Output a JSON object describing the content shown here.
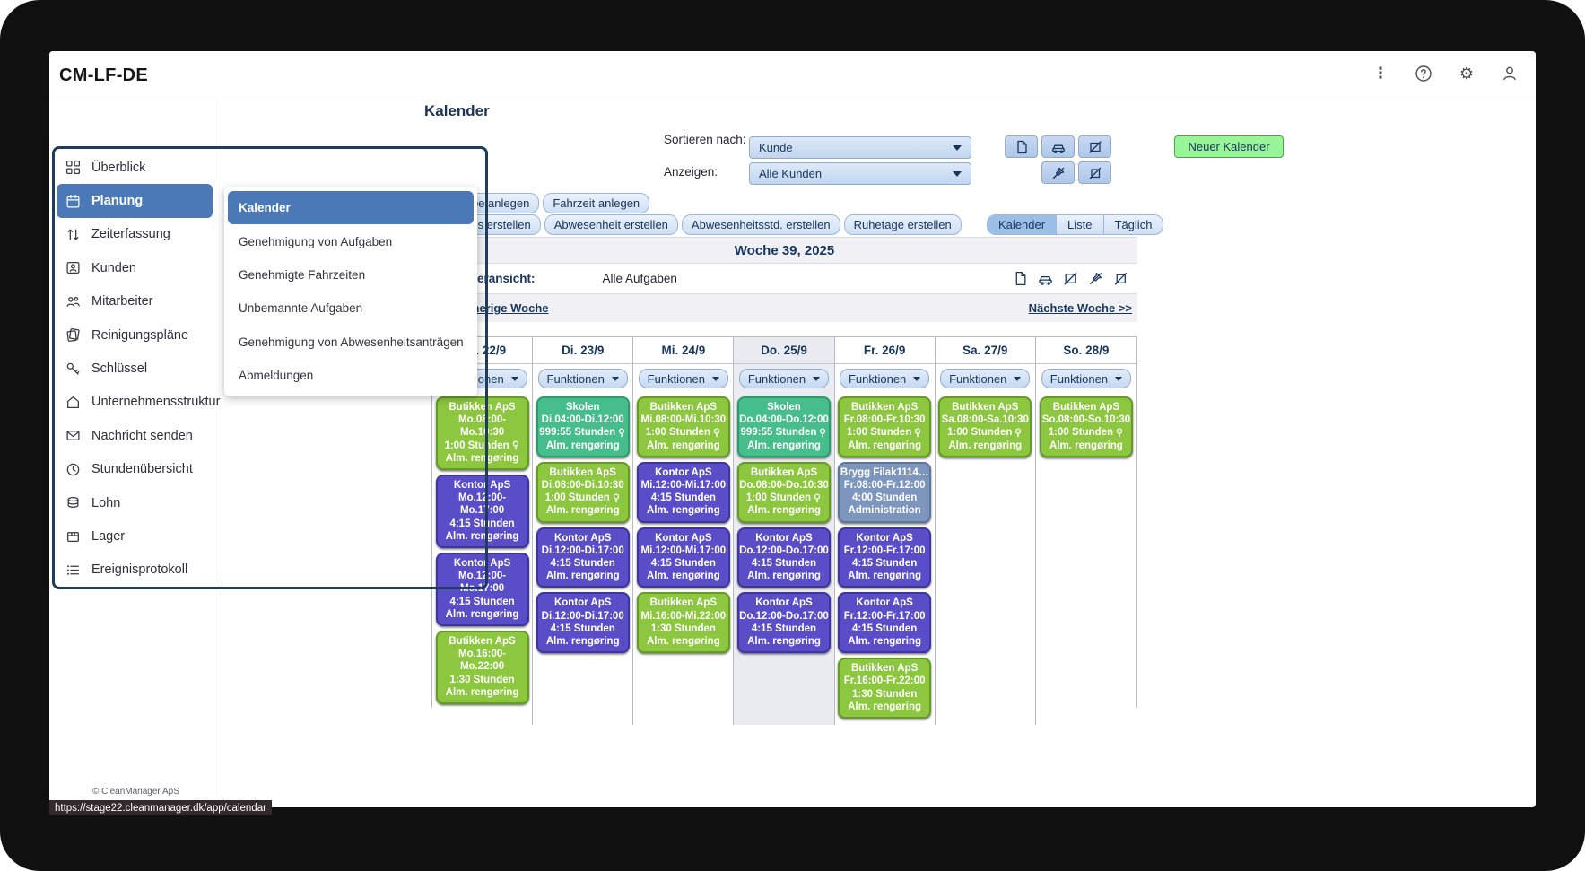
{
  "window": {
    "title": "CM-LF-DE"
  },
  "header": {
    "kebab_glyph": "⋮",
    "gear_glyph": "⚙",
    "help_glyph": "?"
  },
  "page": {
    "title": "Kalender"
  },
  "sidebar": {
    "collapse_glyph": "«",
    "items": [
      {
        "label": "Überblick",
        "icon": "grid"
      },
      {
        "label": "Planung",
        "icon": "calendar",
        "selected": true
      },
      {
        "label": "Zeiterfassung",
        "icon": "updown"
      },
      {
        "label": "Kunden",
        "icon": "idcard"
      },
      {
        "label": "Mitarbeiter",
        "icon": "people"
      },
      {
        "label": "Reinigungspläne",
        "icon": "sheets"
      },
      {
        "label": "Schlüssel",
        "icon": "key"
      },
      {
        "label": "Unternehmensstruktur",
        "icon": "house"
      },
      {
        "label": "Nachricht senden",
        "icon": "envelope"
      },
      {
        "label": "Stundenübersicht",
        "icon": "clock"
      },
      {
        "label": "Lohn",
        "icon": "coins"
      },
      {
        "label": "Lager",
        "icon": "box"
      },
      {
        "label": "Ereignisprotokoll",
        "icon": "list"
      }
    ],
    "footer": "© CleanManager ApS"
  },
  "submenu": {
    "items": [
      {
        "label": "Kalender",
        "selected": true
      },
      {
        "label": "Genehmigung von Aufgaben"
      },
      {
        "label": "Genehmigte Fahrzeiten"
      },
      {
        "label": "Unbemannte Aufgaben"
      },
      {
        "label": "Genehmigung von Abwesenheitsanträgen"
      },
      {
        "label": "Abmeldungen"
      }
    ]
  },
  "toolbar": {
    "sort_label": "Sortieren nach:",
    "sort_value": "Kunde",
    "show_label": "Anzeigen:",
    "show_value": "Alle Kunden",
    "new_calendar_label": "Neuer Kalender"
  },
  "actions": {
    "create_buttons_row1": [
      "Aufgabe anlegen",
      "Fahrzeit anlegen"
    ],
    "create_buttons_row2": [
      "Ereignis erstellen",
      "Abwesenheit erstellen",
      "Abwesenheitsstd. erstellen",
      "Ruhetage erstellen"
    ],
    "view_tabs": [
      {
        "label": "Kalender",
        "active": true
      },
      {
        "label": "Liste"
      },
      {
        "label": "Täglich"
      }
    ]
  },
  "calendar": {
    "week_title": "Woche 39, 2025",
    "view_label": "Kalenderansicht:",
    "view_value": "Alle Aufgaben",
    "prev_link": "<< Vorherige Woche",
    "next_link": "Nächste Woche >>",
    "functions_label": "Funktionen",
    "days": [
      {
        "label": "Mo. 22/9",
        "today": false,
        "events": [
          {
            "color": "green",
            "name": "Butikken ApS",
            "time": "Mo.08:00-Mo.10:30",
            "duration": "1:00 Stunden",
            "person": true,
            "task": "Alm. rengøring"
          },
          {
            "color": "purple",
            "name": "Kontor ApS",
            "time": "Mo.12:00-Mo.17:00",
            "duration": "4:15 Stunden",
            "person": false,
            "task": "Alm. rengøring"
          },
          {
            "color": "purple",
            "name": "Kontor ApS",
            "time": "Mo.12:00-Mo.17:00",
            "duration": "4:15 Stunden",
            "person": false,
            "task": "Alm. rengøring"
          },
          {
            "color": "green",
            "name": "Butikken ApS",
            "time": "Mo.16:00-Mo.22:00",
            "duration": "1:30 Stunden",
            "person": false,
            "task": "Alm. rengøring"
          }
        ]
      },
      {
        "label": "Di. 23/9",
        "today": false,
        "events": [
          {
            "color": "teal",
            "name": "Skolen",
            "time": "Di.04:00-Di.12:00",
            "duration": "999:55 Stunden",
            "person": true,
            "task": "Alm. rengøring"
          },
          {
            "color": "green",
            "name": "Butikken ApS",
            "time": "Di.08:00-Di.10:30",
            "duration": "1:00 Stunden",
            "person": true,
            "task": "Alm. rengøring"
          },
          {
            "color": "purple",
            "name": "Kontor ApS",
            "time": "Di.12:00-Di.17:00",
            "duration": "4:15 Stunden",
            "person": false,
            "task": "Alm. rengøring"
          },
          {
            "color": "purple",
            "name": "Kontor ApS",
            "time": "Di.12:00-Di.17:00",
            "duration": "4:15 Stunden",
            "person": false,
            "task": "Alm. rengøring"
          }
        ]
      },
      {
        "label": "Mi. 24/9",
        "today": false,
        "events": [
          {
            "color": "green",
            "name": "Butikken ApS",
            "time": "Mi.08:00-Mi.10:30",
            "duration": "1:00 Stunden",
            "person": true,
            "task": "Alm. rengøring"
          },
          {
            "color": "purple",
            "name": "Kontor ApS",
            "time": "Mi.12:00-Mi.17:00",
            "duration": "4:15 Stunden",
            "person": false,
            "task": "Alm. rengøring"
          },
          {
            "color": "purple",
            "name": "Kontor ApS",
            "time": "Mi.12:00-Mi.17:00",
            "duration": "4:15 Stunden",
            "person": false,
            "task": "Alm. rengøring"
          },
          {
            "color": "green",
            "name": "Butikken ApS",
            "time": "Mi.16:00-Mi.22:00",
            "duration": "1:30 Stunden",
            "person": false,
            "task": "Alm. rengøring"
          }
        ]
      },
      {
        "label": "Do. 25/9",
        "today": true,
        "events": [
          {
            "color": "teal",
            "name": "Skolen",
            "time": "Do.04:00-Do.12:00",
            "duration": "999:55 Stunden",
            "person": true,
            "task": "Alm. rengøring"
          },
          {
            "color": "green",
            "name": "Butikken ApS",
            "time": "Do.08:00-Do.10:30",
            "duration": "1:00 Stunden",
            "person": true,
            "task": "Alm. rengøring"
          },
          {
            "color": "purple",
            "name": "Kontor ApS",
            "time": "Do.12:00-Do.17:00",
            "duration": "4:15 Stunden",
            "person": false,
            "task": "Alm. rengøring"
          },
          {
            "color": "purple",
            "name": "Kontor ApS",
            "time": "Do.12:00-Do.17:00",
            "duration": "4:15 Stunden",
            "person": false,
            "task": "Alm. rengøring"
          }
        ]
      },
      {
        "label": "Fr. 26/9",
        "today": false,
        "events": [
          {
            "color": "green",
            "name": "Butikken ApS",
            "time": "Fr.08:00-Fr.10:30",
            "duration": "1:00 Stunden",
            "person": true,
            "task": "Alm. rengøring"
          },
          {
            "color": "slate",
            "name": "Brygg Filak1114…",
            "time": "Fr.08:00-Fr.12:00",
            "duration": "4:00 Stunden",
            "person": false,
            "task": "Administration"
          },
          {
            "color": "purple",
            "name": "Kontor ApS",
            "time": "Fr.12:00-Fr.17:00",
            "duration": "4:15 Stunden",
            "person": false,
            "task": "Alm. rengøring"
          },
          {
            "color": "purple",
            "name": "Kontor ApS",
            "time": "Fr.12:00-Fr.17:00",
            "duration": "4:15 Stunden",
            "person": false,
            "task": "Alm. rengøring"
          },
          {
            "color": "green",
            "name": "Butikken ApS",
            "time": "Fr.16:00-Fr.22:00",
            "duration": "1:30 Stunden",
            "person": false,
            "task": "Alm. rengøring"
          }
        ]
      },
      {
        "label": "Sa. 27/9",
        "today": false,
        "events": [
          {
            "color": "green",
            "name": "Butikken ApS",
            "time": "Sa.08:00-Sa.10:30",
            "duration": "1:00 Stunden",
            "person": true,
            "task": "Alm. rengøring"
          }
        ]
      },
      {
        "label": "So. 28/9",
        "today": false,
        "events": [
          {
            "color": "green",
            "name": "Butikken ApS",
            "time": "So.08:00-So.10:30",
            "duration": "1:00 Stunden",
            "person": true,
            "task": "Alm. rengøring"
          }
        ]
      }
    ]
  },
  "statusbar": {
    "url": "https://stage22.cleanmanager.dk/app/calendar"
  },
  "colors": {
    "accent_blue": "#4b79b8",
    "navy_text": "#17365c",
    "event_green": "#8dc63f",
    "event_teal": "#45be8c",
    "event_purple": "#5a4ec8",
    "event_slate": "#7d96bd",
    "new_calendar_green": "#98f598",
    "outline_navy": "#1d3c5e"
  }
}
